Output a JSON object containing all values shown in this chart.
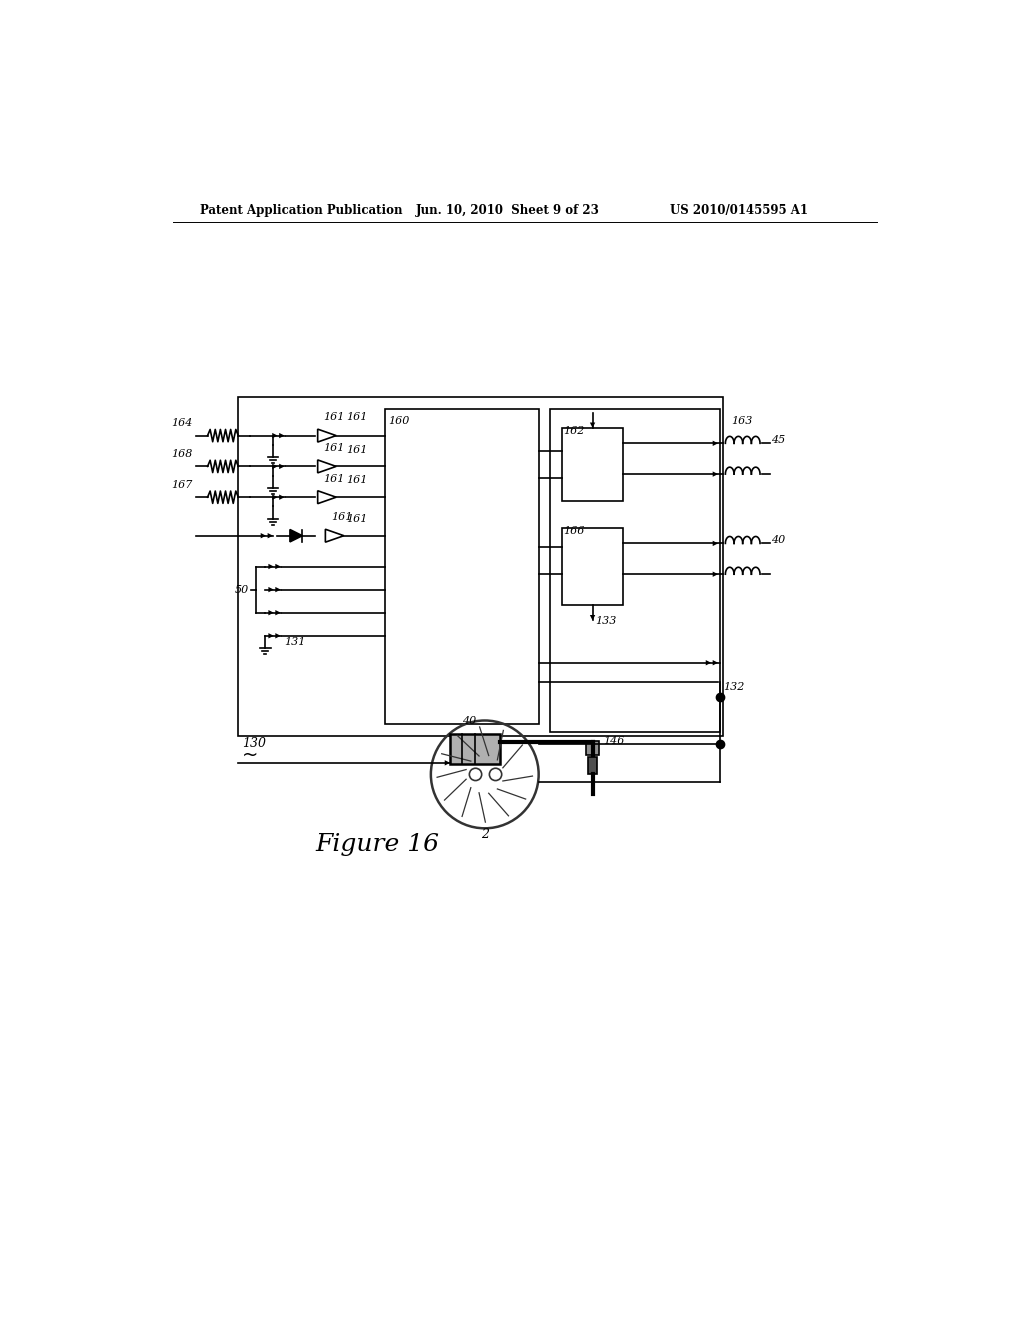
{
  "bg_color": "#ffffff",
  "header_left": "Patent Application Publication",
  "header_mid": "Jun. 10, 2010  Sheet 9 of 23",
  "header_right": "US 2010/0145595 A1",
  "figure_label": "Figure 16"
}
